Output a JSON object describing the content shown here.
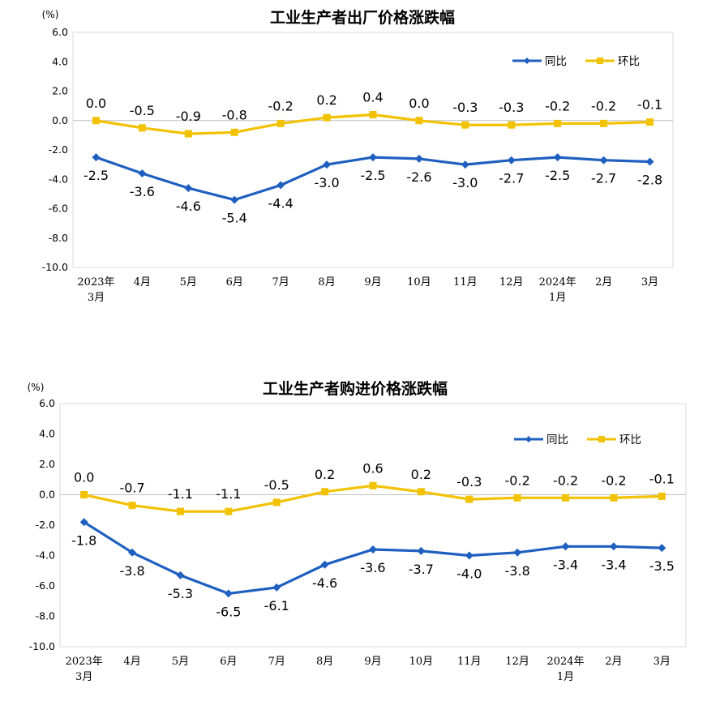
{
  "chart_data": [
    {
      "type": "line",
      "title": "工业生产者出厂价格涨跌幅",
      "unit": "(%)",
      "ylim": [
        -10.0,
        6.0
      ],
      "yticks": [
        "6.0",
        "4.0",
        "2.0",
        "0.0",
        "-2.0",
        "-4.0",
        "-6.0",
        "-8.0",
        "-10.0"
      ],
      "categories": [
        "2023年3月",
        "4月",
        "5月",
        "6月",
        "7月",
        "8月",
        "9月",
        "10月",
        "11月",
        "12月",
        "2024年1月",
        "2月",
        "3月"
      ],
      "category_lines": [
        [
          "2023年",
          "3月"
        ],
        [
          "4月"
        ],
        [
          "5月"
        ],
        [
          "6月"
        ],
        [
          "7月"
        ],
        [
          "8月"
        ],
        [
          "9月"
        ],
        [
          "10月"
        ],
        [
          "11月"
        ],
        [
          "12月"
        ],
        [
          "2024年",
          "1月"
        ],
        [
          "2月"
        ],
        [
          "3月"
        ]
      ],
      "legend_position": "top-right",
      "series": [
        {
          "name": "同比",
          "color": "#1f5fbf",
          "marker": "diamond",
          "values": [
            -2.5,
            -3.6,
            -4.6,
            -5.4,
            -4.4,
            -3.0,
            -2.5,
            -2.6,
            -3.0,
            -2.7,
            -2.5,
            -2.7,
            -2.8
          ],
          "labels": [
            "-2.5",
            "-3.6",
            "-4.6",
            "-5.4",
            "-4.4",
            "-3.0",
            "-2.5",
            "-2.6",
            "-3.0",
            "-2.7",
            "-2.5",
            "-2.7",
            "-2.8"
          ]
        },
        {
          "name": "环比",
          "color": "#f2c200",
          "marker": "square",
          "values": [
            0.0,
            -0.5,
            -0.9,
            -0.8,
            -0.2,
            0.2,
            0.4,
            0.0,
            -0.3,
            -0.3,
            -0.2,
            -0.2,
            -0.1
          ],
          "labels": [
            "0.0",
            "-0.5",
            "-0.9",
            "-0.8",
            "-0.2",
            "0.2",
            "0.4",
            "0.0",
            "-0.3",
            "-0.3",
            "-0.2",
            "-0.2",
            "-0.1"
          ]
        }
      ]
    },
    {
      "type": "line",
      "title": "工业生产者购进价格涨跌幅",
      "unit": "(%)",
      "ylim": [
        -10.0,
        6.0
      ],
      "yticks": [
        "6.0",
        "4.0",
        "2.0",
        "0.0",
        "-2.0",
        "-4.0",
        "-6.0",
        "-8.0",
        "-10.0"
      ],
      "categories": [
        "2023年3月",
        "4月",
        "5月",
        "6月",
        "7月",
        "8月",
        "9月",
        "10月",
        "11月",
        "12月",
        "2024年1月",
        "2月",
        "3月"
      ],
      "category_lines": [
        [
          "2023年",
          "3月"
        ],
        [
          "4月"
        ],
        [
          "5月"
        ],
        [
          "6月"
        ],
        [
          "7月"
        ],
        [
          "8月"
        ],
        [
          "9月"
        ],
        [
          "10月"
        ],
        [
          "11月"
        ],
        [
          "12月"
        ],
        [
          "2024年",
          "1月"
        ],
        [
          "2月"
        ],
        [
          "3月"
        ]
      ],
      "legend_position": "top-right",
      "series": [
        {
          "name": "同比",
          "color": "#1f5fbf",
          "marker": "diamond",
          "values": [
            -1.8,
            -3.8,
            -5.3,
            -6.5,
            -6.1,
            -4.6,
            -3.6,
            -3.7,
            -4.0,
            -3.8,
            -3.4,
            -3.4,
            -3.5
          ],
          "labels": [
            "-1.8",
            "-3.8",
            "-5.3",
            "-6.5",
            "-6.1",
            "-4.6",
            "-3.6",
            "-3.7",
            "-4.0",
            "-3.8",
            "-3.4",
            "-3.4",
            "-3.5"
          ]
        },
        {
          "name": "环比",
          "color": "#f2c200",
          "marker": "square",
          "values": [
            0.0,
            -0.7,
            -1.1,
            -1.1,
            -0.5,
            0.2,
            0.6,
            0.2,
            -0.3,
            -0.2,
            -0.2,
            -0.2,
            -0.1
          ],
          "labels": [
            "0.0",
            "-0.7",
            "-1.1",
            "-1.1",
            "-0.5",
            "0.2",
            "0.6",
            "0.2",
            "-0.3",
            "-0.2",
            "-0.2",
            "-0.2",
            "-0.1"
          ]
        }
      ]
    }
  ]
}
